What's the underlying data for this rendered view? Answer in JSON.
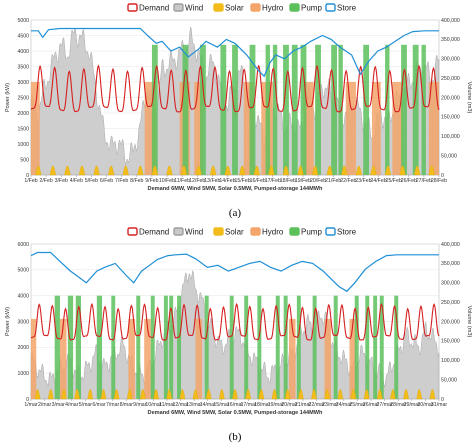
{
  "colors": {
    "demand": "#d62020",
    "wind": "#c9c9c9",
    "wind_edge": "#9e9e9e",
    "solar": "#f2bc1b",
    "hydro": "#f3a56b",
    "pump": "#5cc15c",
    "store": "#1f8fd6",
    "grid": "#e4e4e4"
  },
  "legend": [
    "Demand",
    "Wind",
    "Solar",
    "Hydro",
    "Pump",
    "Store"
  ],
  "chart_data": [
    {
      "type": "area",
      "label": "(a)",
      "caption": "Demand 6MW, Wind 5MW, Solar 0.5MW, Pumped-storage 144MWh",
      "ylabel": "Power (kW)",
      "y2label": "Volume (m3)",
      "ylim": [
        0,
        5000
      ],
      "y2lim": [
        0,
        400000
      ],
      "yticks": [
        "0",
        "500",
        "1000",
        "1500",
        "2000",
        "2500",
        "3000",
        "3500",
        "4000",
        "4500",
        "5000"
      ],
      "y2ticks": [
        "0",
        "50,000",
        "100,000",
        "150,000",
        "200,000",
        "250,000",
        "300,000",
        "350,000",
        "400,000"
      ],
      "xticks": [
        "1/Feb",
        "2/Feb",
        "3/Feb",
        "4/Feb",
        "5/Feb",
        "6/Feb",
        "7/Feb",
        "8/Feb",
        "9/Feb",
        "10/Feb",
        "11/Feb",
        "12/Feb",
        "13/Feb",
        "14/Feb",
        "15/Feb",
        "16/Feb",
        "17/Feb",
        "18/Feb",
        "19/Feb",
        "20/Feb",
        "21/Feb",
        "22/Feb",
        "23/Feb",
        "24/Feb",
        "25/Feb",
        "26/Feb",
        "27/Feb",
        "28/Feb"
      ],
      "x_range_days": [
        0,
        28
      ],
      "series": [
        {
          "name": "Wind",
          "x_day": [
            0,
            0.4,
            1,
            1.4,
            2,
            2.5,
            3,
            3.5,
            4,
            4.5,
            5,
            5.5,
            6,
            6.5,
            7,
            7.5,
            8,
            8.5,
            9,
            9.5,
            10,
            10.5,
            11,
            11.5,
            12,
            12.5,
            13,
            13.5,
            14,
            14.5,
            15,
            15.5,
            16,
            16.5,
            17,
            17.5,
            18,
            18.5,
            19,
            19.5,
            20,
            20.5,
            21,
            21.5,
            22,
            22.5,
            23,
            23.5,
            24,
            24.5,
            25,
            25.5,
            26,
            26.5,
            27,
            27.5,
            28
          ],
          "values": [
            2400,
            1900,
            2900,
            3500,
            4200,
            3900,
            4600,
            4400,
            4000,
            2700,
            1400,
            900,
            1100,
            600,
            700,
            1600,
            2900,
            1800,
            3400,
            3600,
            3800,
            4100,
            4400,
            3900,
            3200,
            3700,
            2800,
            2200,
            3000,
            3300,
            2600,
            1800,
            1200,
            2300,
            2000,
            1500,
            1700,
            1400,
            2600,
            2100,
            2900,
            2700,
            2200,
            1900,
            2400,
            2100,
            1600,
            1300,
            2000,
            1700,
            2300,
            2600,
            3000,
            3300,
            3500,
            3100,
            3700
          ]
        },
        {
          "name": "Demand",
          "base": 2600,
          "amplitude": 650
        },
        {
          "name": "Solar",
          "peak": 300
        },
        {
          "name": "Hydro",
          "intervals_day": [
            [
              0,
              0.6
            ],
            [
              7.8,
              8.6
            ],
            [
              10.2,
              10.9
            ],
            [
              11.2,
              11.8
            ],
            [
              14.6,
              15.3
            ],
            [
              15.8,
              16.6
            ],
            [
              18.7,
              19.4
            ],
            [
              21.6,
              22.3
            ],
            [
              23.4,
              24.0
            ],
            [
              24.8,
              25.5
            ],
            [
              27.3,
              28.0
            ]
          ],
          "level": 3000
        },
        {
          "name": "Pump",
          "intervals_day": [
            [
              8.3,
              8.7
            ],
            [
              10.4,
              10.8
            ],
            [
              11.6,
              12.0
            ],
            [
              13.0,
              13.4
            ],
            [
              13.8,
              14.2
            ],
            [
              15.0,
              15.4
            ],
            [
              16.1,
              16.4
            ],
            [
              16.6,
              16.9
            ],
            [
              17.3,
              17.7
            ],
            [
              17.9,
              18.3
            ],
            [
              18.5,
              18.9
            ],
            [
              19.5,
              19.9
            ],
            [
              20.6,
              21.0
            ],
            [
              21.1,
              21.4
            ],
            [
              22.8,
              23.2
            ],
            [
              24.3,
              24.6
            ],
            [
              25.4,
              25.8
            ],
            [
              26.2,
              26.6
            ],
            [
              26.8,
              27.1
            ]
          ],
          "level": 4200
        },
        {
          "name": "Store",
          "x_day": [
            0,
            0.5,
            0.8,
            1.2,
            2.0,
            4.0,
            6.0,
            7.5,
            8.0,
            8.6,
            9.0,
            9.6,
            10.2,
            10.8,
            11.5,
            12.0,
            12.8,
            13.4,
            14.0,
            14.8,
            15.2,
            15.6,
            16.0,
            16.4,
            16.8,
            17.4,
            18.0,
            18.6,
            19.2,
            20.0,
            20.6,
            21.2,
            22.0,
            22.6,
            23.2,
            23.8,
            24.4,
            25.0,
            25.6,
            26.2,
            27.0,
            28.0
          ],
          "values": [
            372000,
            372000,
            355000,
            375000,
            378000,
            378000,
            378000,
            378000,
            360000,
            340000,
            345000,
            320000,
            330000,
            305000,
            325000,
            345000,
            330000,
            350000,
            340000,
            310000,
            290000,
            270000,
            255000,
            290000,
            310000,
            300000,
            320000,
            330000,
            345000,
            360000,
            350000,
            330000,
            310000,
            260000,
            295000,
            320000,
            330000,
            345000,
            360000,
            370000,
            372000,
            372000
          ]
        }
      ]
    },
    {
      "type": "area",
      "label": "(b)",
      "caption": "Demand 6MW, Wind 5MW, Solar 0.5MW, Pumped-storage 144MWh",
      "ylabel": "Power (kW)",
      "y2label": "Volume (m3)",
      "ylim": [
        0,
        6000
      ],
      "y2lim": [
        0,
        400000
      ],
      "yticks": [
        "0",
        "1000",
        "2000",
        "3000",
        "4000",
        "5000",
        "6000"
      ],
      "y2ticks": [
        "0",
        "50,000",
        "100,000",
        "150,000",
        "200,000",
        "250,000",
        "300,000",
        "350,000",
        "400,000"
      ],
      "xticks": [
        "1/mar",
        "2/mar",
        "3/mar",
        "4/mar",
        "5/mar",
        "6/mar",
        "7/mar",
        "8/mar",
        "9/mar",
        "10/mar",
        "11/mar",
        "12/mar",
        "13/mar",
        "14/mar",
        "15/mar",
        "16/mar",
        "17/mar",
        "18/mar",
        "19/mar",
        "20/mar",
        "21/mar",
        "22/mar",
        "23/mar",
        "24/mar",
        "25/mar",
        "26/mar",
        "27/mar",
        "28/mar",
        "29/mar",
        "30/mar",
        "31/mar"
      ],
      "x_range_days": [
        0,
        31
      ],
      "series": [
        {
          "name": "Wind",
          "x_day": [
            0,
            0.5,
            1,
            1.5,
            2,
            2.5,
            3,
            3.5,
            4,
            4.5,
            5,
            5.5,
            6,
            6.5,
            7,
            7.5,
            8,
            8.5,
            9,
            9.5,
            10,
            10.5,
            11,
            11.5,
            12,
            12.5,
            13,
            13.5,
            14,
            14.5,
            15,
            15.5,
            16,
            16.5,
            17,
            17.5,
            18,
            18.5,
            19,
            19.5,
            20,
            20.5,
            21,
            21.5,
            22,
            22.5,
            23,
            23.5,
            24,
            24.5,
            25,
            25.5,
            26,
            26.5,
            27,
            27.5,
            28,
            28.5,
            29,
            29.5,
            30,
            30.5,
            31
          ],
          "values": [
            1600,
            1200,
            900,
            700,
            1100,
            1300,
            1500,
            900,
            1000,
            1400,
            1800,
            1200,
            1500,
            1800,
            2100,
            1500,
            1100,
            900,
            1200,
            1800,
            2400,
            2800,
            3200,
            4200,
            5000,
            4300,
            3800,
            2900,
            2400,
            2000,
            2300,
            2600,
            2400,
            1800,
            1500,
            1200,
            900,
            1100,
            1300,
            1600,
            1800,
            2500,
            3000,
            2600,
            3300,
            3000,
            2000,
            1700,
            1400,
            1100,
            1800,
            1600,
            1200,
            1000,
            800,
            1400,
            1900,
            2500,
            2200,
            2000,
            2700,
            2400,
            2000
          ]
        },
        {
          "name": "Demand",
          "base": 2800,
          "amplitude": 600
        },
        {
          "name": "Solar",
          "peak": 380
        },
        {
          "name": "Hydro",
          "intervals_day": [
            [
              0,
              0.4
            ],
            [
              2.2,
              2.7
            ],
            [
              7.4,
              7.9
            ],
            [
              8.6,
              9.1
            ],
            [
              12.5,
              13.0
            ],
            [
              19.6,
              20.1
            ],
            [
              22.3,
              22.8
            ],
            [
              24.2,
              24.7
            ]
          ],
          "level": 3100
        },
        {
          "name": "Pump",
          "intervals_day": [
            [
              1.8,
              2.2
            ],
            [
              2.8,
              3.2
            ],
            [
              3.4,
              3.8
            ],
            [
              5.0,
              5.4
            ],
            [
              6.1,
              6.4
            ],
            [
              8.0,
              8.3
            ],
            [
              9.1,
              9.4
            ],
            [
              10.1,
              10.4
            ],
            [
              10.5,
              10.8
            ],
            [
              11.1,
              11.4
            ],
            [
              13.2,
              13.5
            ],
            [
              15.1,
              15.4
            ],
            [
              16.2,
              16.5
            ],
            [
              17.2,
              17.5
            ],
            [
              18.6,
              18.9
            ],
            [
              19.2,
              19.5
            ],
            [
              20.2,
              20.5
            ],
            [
              21.4,
              21.7
            ],
            [
              23.0,
              23.3
            ],
            [
              24.6,
              24.9
            ],
            [
              25.4,
              25.7
            ],
            [
              26.0,
              26.3
            ],
            [
              26.5,
              26.8
            ],
            [
              27.6,
              27.9
            ]
          ],
          "level": 4000
        },
        {
          "name": "Store",
          "x_day": [
            0,
            0.5,
            1.5,
            2.2,
            3.0,
            3.6,
            4.2,
            5.0,
            5.6,
            6.4,
            7.2,
            7.8,
            8.4,
            9.0,
            9.6,
            10.4,
            11.0,
            11.8,
            12.5,
            13.4,
            14.2,
            15.0,
            15.8,
            16.6,
            17.4,
            18.2,
            19.0,
            19.8,
            20.6,
            21.4,
            22.2,
            22.8,
            23.4,
            24.0,
            24.6,
            25.4,
            26.2,
            27.0,
            27.8,
            28.6,
            29.4,
            30.2,
            31.0
          ],
          "values": [
            370000,
            378000,
            378000,
            355000,
            330000,
            315000,
            300000,
            330000,
            340000,
            350000,
            320000,
            300000,
            330000,
            345000,
            360000,
            370000,
            372000,
            374000,
            362000,
            340000,
            345000,
            330000,
            340000,
            350000,
            355000,
            340000,
            330000,
            345000,
            355000,
            350000,
            330000,
            310000,
            290000,
            278000,
            300000,
            335000,
            355000,
            370000,
            372000,
            372000,
            372000,
            372000,
            372000
          ]
        }
      ]
    }
  ]
}
